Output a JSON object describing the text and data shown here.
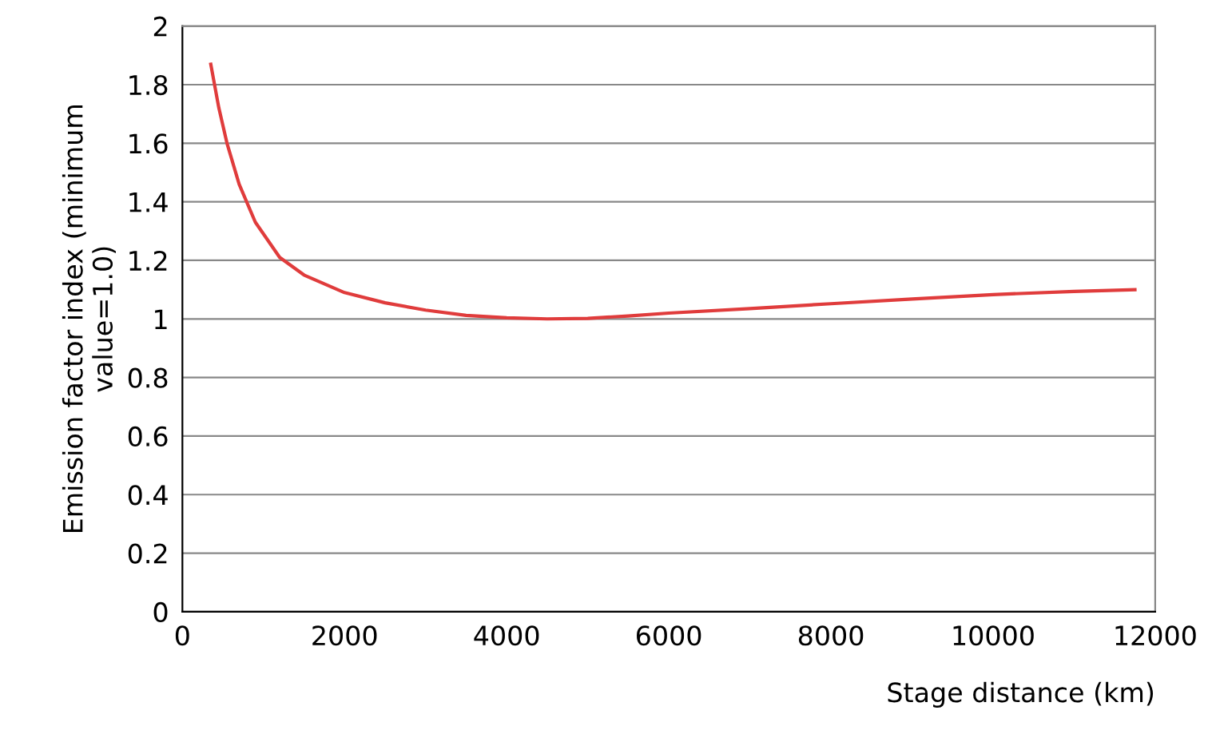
{
  "chart_data": {
    "type": "line",
    "xlabel": "Stage distance (km)",
    "ylabel": "Emission factor index (minimum\nvalue=1.0)",
    "series": [
      {
        "color": "#e03c3c",
        "x": [
          350,
          450,
          550,
          700,
          900,
          1200,
          1500,
          2000,
          2500,
          3000,
          3500,
          4000,
          4500,
          5000,
          5500,
          6000,
          7000,
          8000,
          9000,
          10000,
          11000,
          11750
        ],
        "values": [
          1.87,
          1.72,
          1.6,
          1.46,
          1.33,
          1.21,
          1.15,
          1.09,
          1.055,
          1.03,
          1.012,
          1.004,
          1.0,
          1.002,
          1.01,
          1.02,
          1.035,
          1.052,
          1.068,
          1.083,
          1.094,
          1.1
        ]
      }
    ],
    "xlim": [
      0,
      12000
    ],
    "xticks": [
      0,
      2000,
      4000,
      6000,
      8000,
      10000,
      12000
    ],
    "ylim": [
      0,
      2
    ],
    "yticks": [
      0,
      0.2,
      0.4,
      0.6,
      0.8,
      1,
      1.2,
      1.4,
      1.6,
      1.8,
      2
    ],
    "grid": "y",
    "legend": false,
    "marker": "none",
    "line_style": "solid"
  }
}
